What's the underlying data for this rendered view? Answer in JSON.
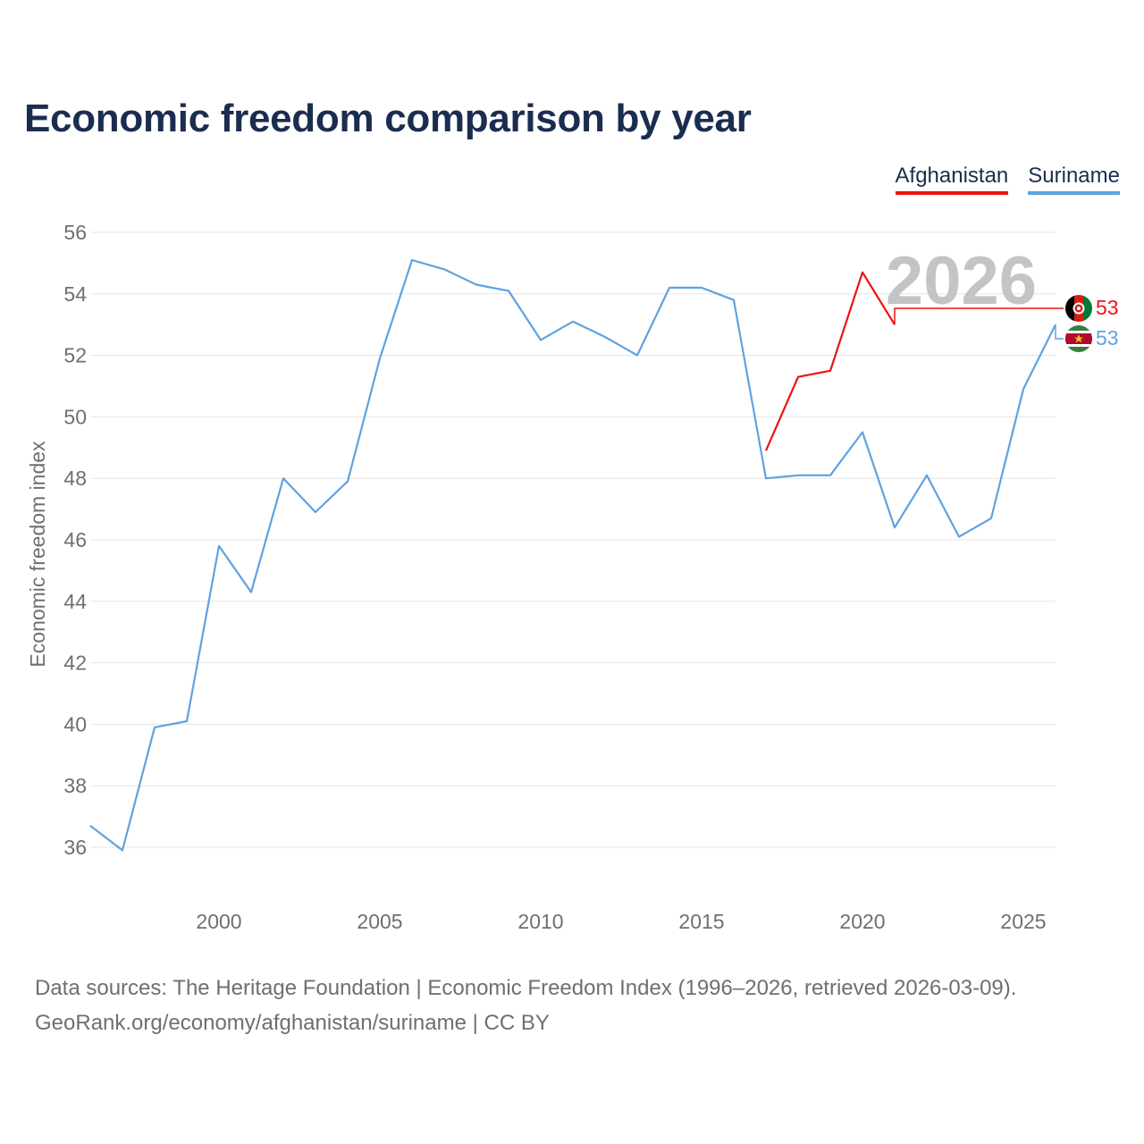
{
  "title": "Economic freedom comparison by year",
  "legend": {
    "afghanistan": "Afghanistan",
    "suriname": "Suriname"
  },
  "colors": {
    "afghanistan": "#ee1111",
    "suriname": "#5da3e0",
    "title": "#1b2d4f",
    "grid": "#e6e6e6",
    "axis_text": "#6f6f6f",
    "year_watermark": "#c4c4c4"
  },
  "year_watermark": "2026",
  "end_labels": {
    "afghanistan": "53",
    "suriname": "53"
  },
  "flags": {
    "afghanistan": "afghanistan-flag-icon",
    "suriname": "suriname-flag-icon"
  },
  "chart_data": {
    "type": "line",
    "title": "Economic freedom comparison by year",
    "xlabel": "",
    "ylabel": "Economic freedom index",
    "xlim": [
      1996,
      2026
    ],
    "ylim": [
      35,
      56.3
    ],
    "x_ticks": [
      2000,
      2005,
      2010,
      2015,
      2020,
      2025
    ],
    "y_ticks": [
      36,
      38,
      40,
      42,
      44,
      46,
      48,
      50,
      52,
      54,
      56
    ],
    "grid": true,
    "legend_position": "top-right",
    "series": [
      {
        "name": "Afghanistan",
        "x": [
          2017,
          2018,
          2019,
          2020,
          2021
        ],
        "values": [
          48.9,
          51.3,
          51.5,
          54.7,
          53.0
        ]
      },
      {
        "name": "Suriname",
        "x": [
          1996,
          1997,
          1998,
          1999,
          2000,
          2001,
          2002,
          2003,
          2004,
          2005,
          2006,
          2007,
          2008,
          2009,
          2010,
          2011,
          2012,
          2013,
          2014,
          2015,
          2016,
          2017,
          2018,
          2019,
          2020,
          2021,
          2022,
          2023,
          2024,
          2025,
          2026
        ],
        "values": [
          36.7,
          35.9,
          39.9,
          40.1,
          45.8,
          44.3,
          48.0,
          46.9,
          47.9,
          51.9,
          55.1,
          54.8,
          54.3,
          54.1,
          52.5,
          53.1,
          52.6,
          52.0,
          54.2,
          54.2,
          53.8,
          48.0,
          48.1,
          48.1,
          49.5,
          46.4,
          48.1,
          46.1,
          46.7,
          50.9,
          53.0
        ]
      }
    ]
  },
  "footer": {
    "line1": "Data sources: The Heritage Foundation | Economic Freedom Index (1996–2026, retrieved 2026-03-09).",
    "line2": "GeoRank.org/economy/afghanistan/suriname | CC BY"
  }
}
